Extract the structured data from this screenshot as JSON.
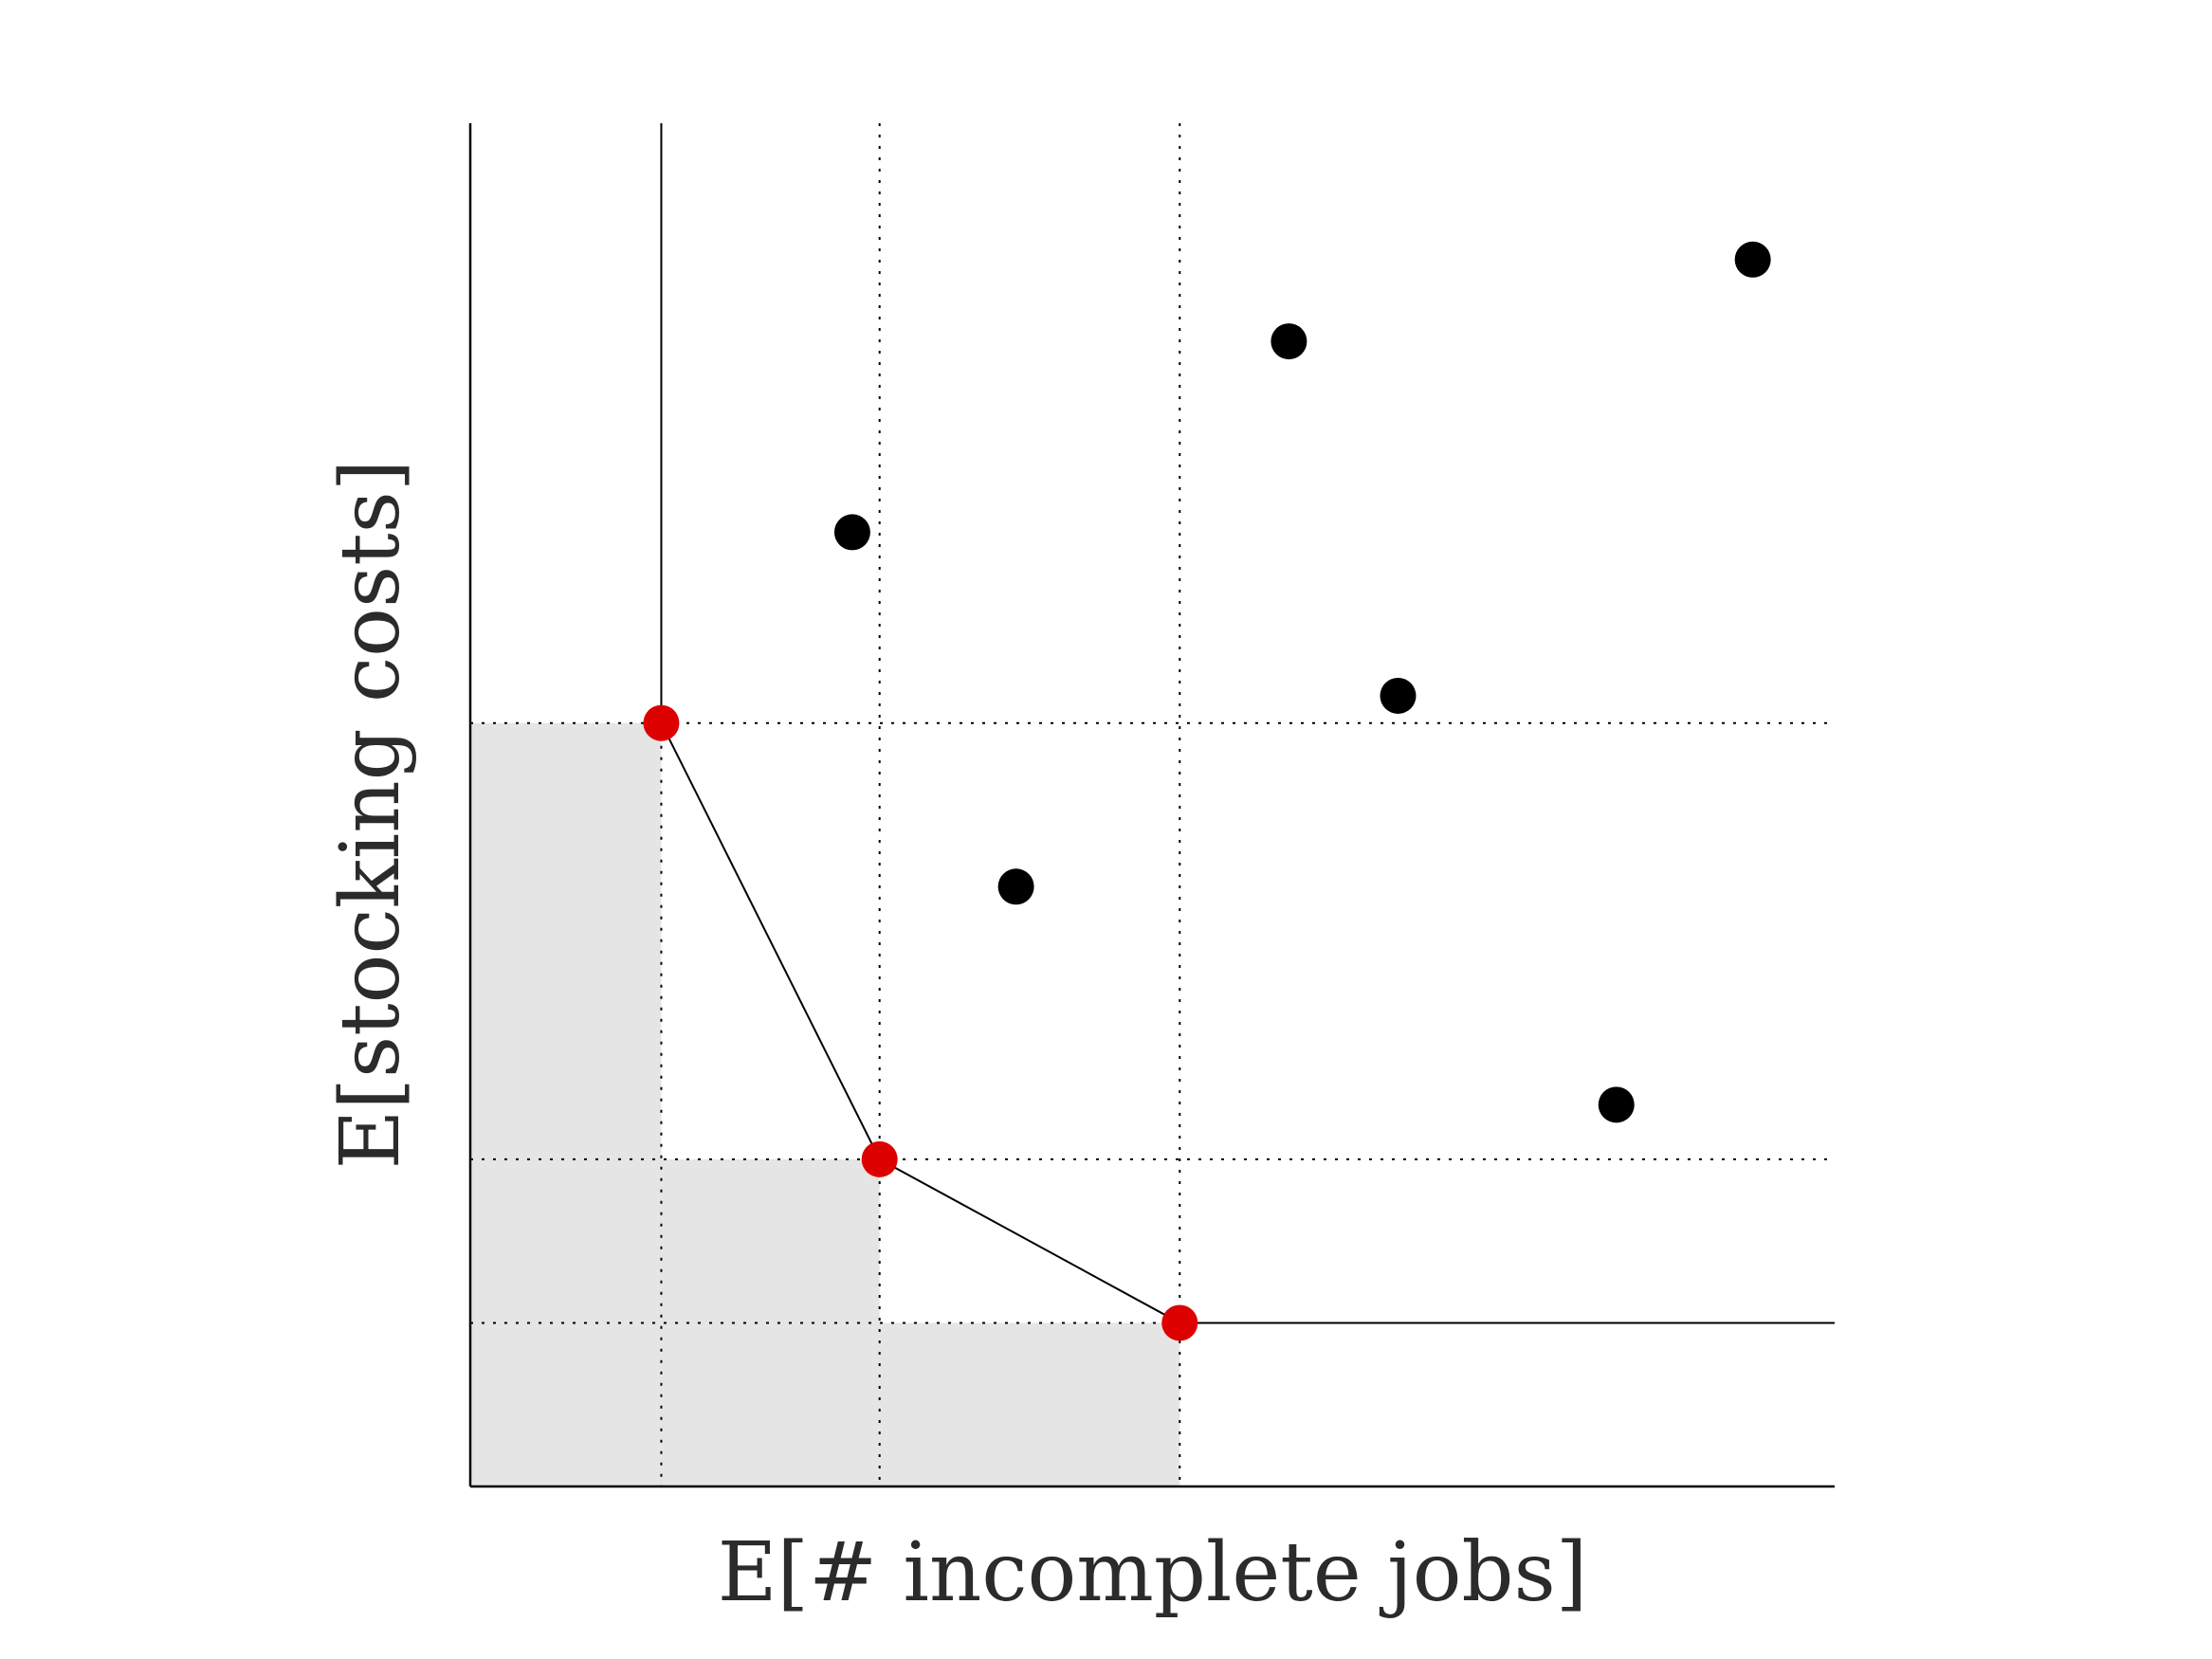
{
  "chart_data": {
    "type": "scatter",
    "title": "",
    "xlabel": "E[# incomplete jobs]",
    "ylabel": "E[stocking costs]",
    "xlim": [
      0,
      10
    ],
    "ylim": [
      0,
      10
    ],
    "grid": false,
    "legend": "none",
    "colors": {
      "pareto": "#dd0000",
      "dominated": "#000000",
      "shade": "#e5e5e5"
    },
    "series": [
      {
        "points": [
          {
            "x": 1.4,
            "y": 5.6
          },
          {
            "x": 3.0,
            "y": 2.4
          },
          {
            "x": 5.2,
            "y": 1.2
          }
        ]
      },
      {
        "points": [
          {
            "x": 2.8,
            "y": 7.0
          },
          {
            "x": 4.0,
            "y": 4.4
          },
          {
            "x": 6.0,
            "y": 8.4
          },
          {
            "x": 6.8,
            "y": 5.8
          },
          {
            "x": 8.4,
            "y": 2.8
          },
          {
            "x": 9.4,
            "y": 9.0
          }
        ]
      }
    ]
  }
}
